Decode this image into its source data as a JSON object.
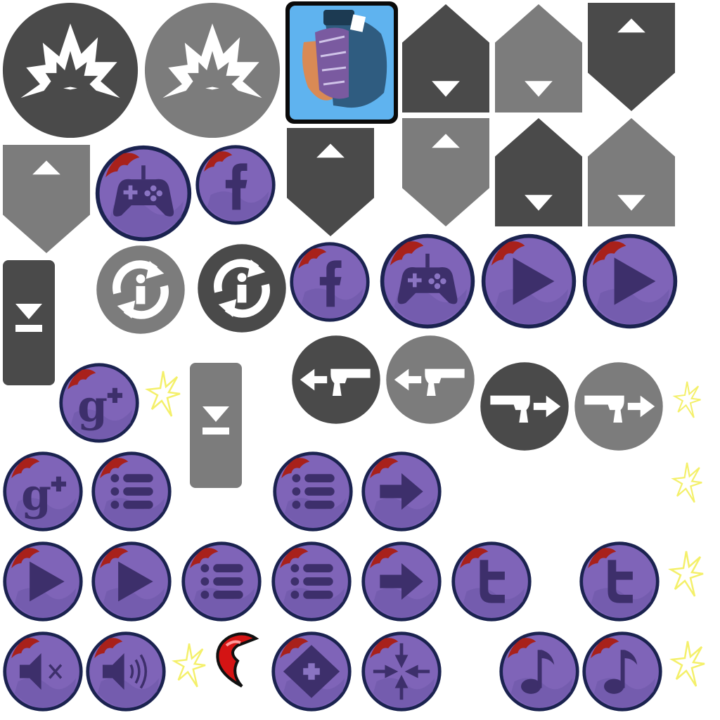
{
  "sheet": {
    "palette": {
      "dark_gray": "#4a4a4a",
      "mid_gray": "#7c7c7c",
      "purple_face": "#7f64b8",
      "purple_glyph": "#3d2f6b",
      "purple_rim": "#1b2350",
      "blood_red": "#a8211b",
      "spark_yellow": "#f4f06a",
      "heart_red": "#d41414",
      "avatar_sky": "#5fb3ef",
      "avatar_helmet": "#2f5c80"
    },
    "sprites": [
      {
        "icon": "explosion-icon",
        "tone": "dark_gray"
      },
      {
        "icon": "explosion-icon",
        "tone": "mid_gray"
      },
      {
        "icon": "soldier-avatar",
        "tone": "avatar_sky"
      },
      {
        "icon": "house-down-arrow-icon",
        "tone": "dark_gray"
      },
      {
        "icon": "house-down-arrow-icon",
        "tone": "mid_gray"
      },
      {
        "icon": "pennant-up-arrow-icon",
        "tone": "dark_gray"
      },
      {
        "icon": "pennant-up-arrow-icon",
        "tone": "mid_gray"
      },
      {
        "icon": "gamepad-icon",
        "tone": "purple_face"
      },
      {
        "icon": "facebook-icon",
        "tone": "purple_face"
      },
      {
        "icon": "pennant-up-arrow-icon",
        "tone": "dark_gray"
      },
      {
        "icon": "pennant-up-arrow-icon",
        "tone": "mid_gray"
      },
      {
        "icon": "house-down-arrow-icon",
        "tone": "dark_gray"
      },
      {
        "icon": "house-down-arrow-icon",
        "tone": "mid_gray"
      },
      {
        "icon": "download-icon",
        "tone": "dark_gray"
      },
      {
        "icon": "refresh-info-icon",
        "tone": "mid_gray"
      },
      {
        "icon": "refresh-info-icon",
        "tone": "dark_gray"
      },
      {
        "icon": "facebook-icon",
        "tone": "purple_face"
      },
      {
        "icon": "gamepad-icon",
        "tone": "purple_face"
      },
      {
        "icon": "play-icon",
        "tone": "purple_face"
      },
      {
        "icon": "play-icon",
        "tone": "purple_face"
      },
      {
        "icon": "gun-left-icon",
        "tone": "dark_gray"
      },
      {
        "icon": "gun-left-icon",
        "tone": "mid_gray"
      },
      {
        "icon": "google-plus-icon",
        "tone": "purple_face"
      },
      {
        "icon": "spark-icon",
        "tone": "spark_yellow"
      },
      {
        "icon": "download-icon",
        "tone": "mid_gray"
      },
      {
        "icon": "gun-right-icon",
        "tone": "dark_gray"
      },
      {
        "icon": "gun-right-icon",
        "tone": "mid_gray"
      },
      {
        "icon": "spark-icon",
        "tone": "spark_yellow"
      },
      {
        "icon": "google-plus-icon",
        "tone": "purple_face"
      },
      {
        "icon": "menu-list-icon",
        "tone": "purple_face"
      },
      {
        "icon": "menu-list-icon",
        "tone": "purple_face"
      },
      {
        "icon": "next-arrow-icon",
        "tone": "purple_face"
      },
      {
        "icon": "spark-icon",
        "tone": "spark_yellow"
      },
      {
        "icon": "play-icon",
        "tone": "purple_face"
      },
      {
        "icon": "play-icon",
        "tone": "purple_face"
      },
      {
        "icon": "menu-list-icon",
        "tone": "purple_face"
      },
      {
        "icon": "menu-list-icon",
        "tone": "purple_face"
      },
      {
        "icon": "next-arrow-icon",
        "tone": "purple_face"
      },
      {
        "icon": "twitter-icon",
        "tone": "purple_face"
      },
      {
        "icon": "twitter-icon",
        "tone": "purple_face"
      },
      {
        "icon": "spark-icon",
        "tone": "spark_yellow"
      },
      {
        "icon": "sound-off-icon",
        "tone": "purple_face"
      },
      {
        "icon": "sound-on-icon",
        "tone": "purple_face"
      },
      {
        "icon": "spark-icon",
        "tone": "spark_yellow"
      },
      {
        "icon": "heart-half-icon",
        "tone": "heart_red"
      },
      {
        "icon": "move-arrows-icon",
        "tone": "purple_face"
      },
      {
        "icon": "shrink-arrows-icon",
        "tone": "purple_face"
      },
      {
        "icon": "music-note-icon",
        "tone": "purple_face"
      },
      {
        "icon": "music-note-icon",
        "tone": "purple_face"
      },
      {
        "icon": "spark-icon",
        "tone": "spark_yellow"
      }
    ]
  }
}
